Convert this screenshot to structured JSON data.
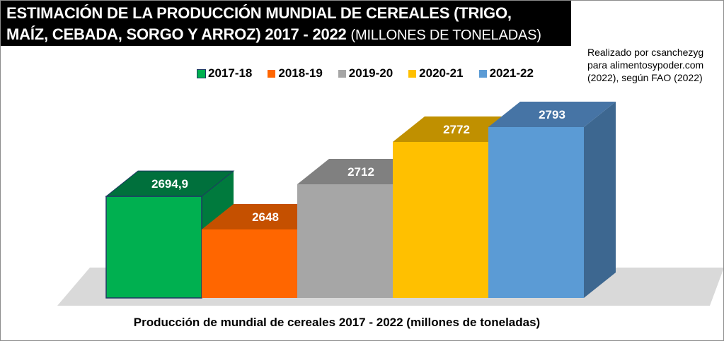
{
  "title": {
    "main": "ESTIMACIÓN DE LA PRODUCCIÓN MUNDIAL DE CEREALES (TRIGO,",
    "main2": "MAÍZ, CEBADA, SORGO Y ARROZ) 2017 - 2022",
    "sub": "(MILLONES DE TONELADAS)"
  },
  "credit": [
    "Realizado por csanchezyg",
    "para alimentosypoder.com",
    "(2022), según FAO (2022)"
  ],
  "chart_data": {
    "type": "bar",
    "style": "3d-column",
    "categories": [
      "2017-18",
      "2018-19",
      "2019-20",
      "2020-21",
      "2021-22"
    ],
    "values": [
      2694.9,
      2648,
      2712,
      2772,
      2793
    ],
    "labels": [
      "2694,9",
      "2648",
      "2712",
      "2772",
      "2793"
    ],
    "colors": [
      "#00b050",
      "#ff6600",
      "#a6a6a6",
      "#ffc000",
      "#5b9bd5"
    ],
    "top_colors": [
      "#00703c",
      "#c55000",
      "#808080",
      "#c09000",
      "#4674a5"
    ],
    "side_colors": [
      "#007a3d",
      "#b84c00",
      "#777777",
      "#b08400",
      "#3d6790"
    ],
    "xlabel": "Producción de mundial de cereales 2017 - 2022 (millones de toneladas)",
    "ylabel": "",
    "legend_position": "top",
    "grid": false
  }
}
